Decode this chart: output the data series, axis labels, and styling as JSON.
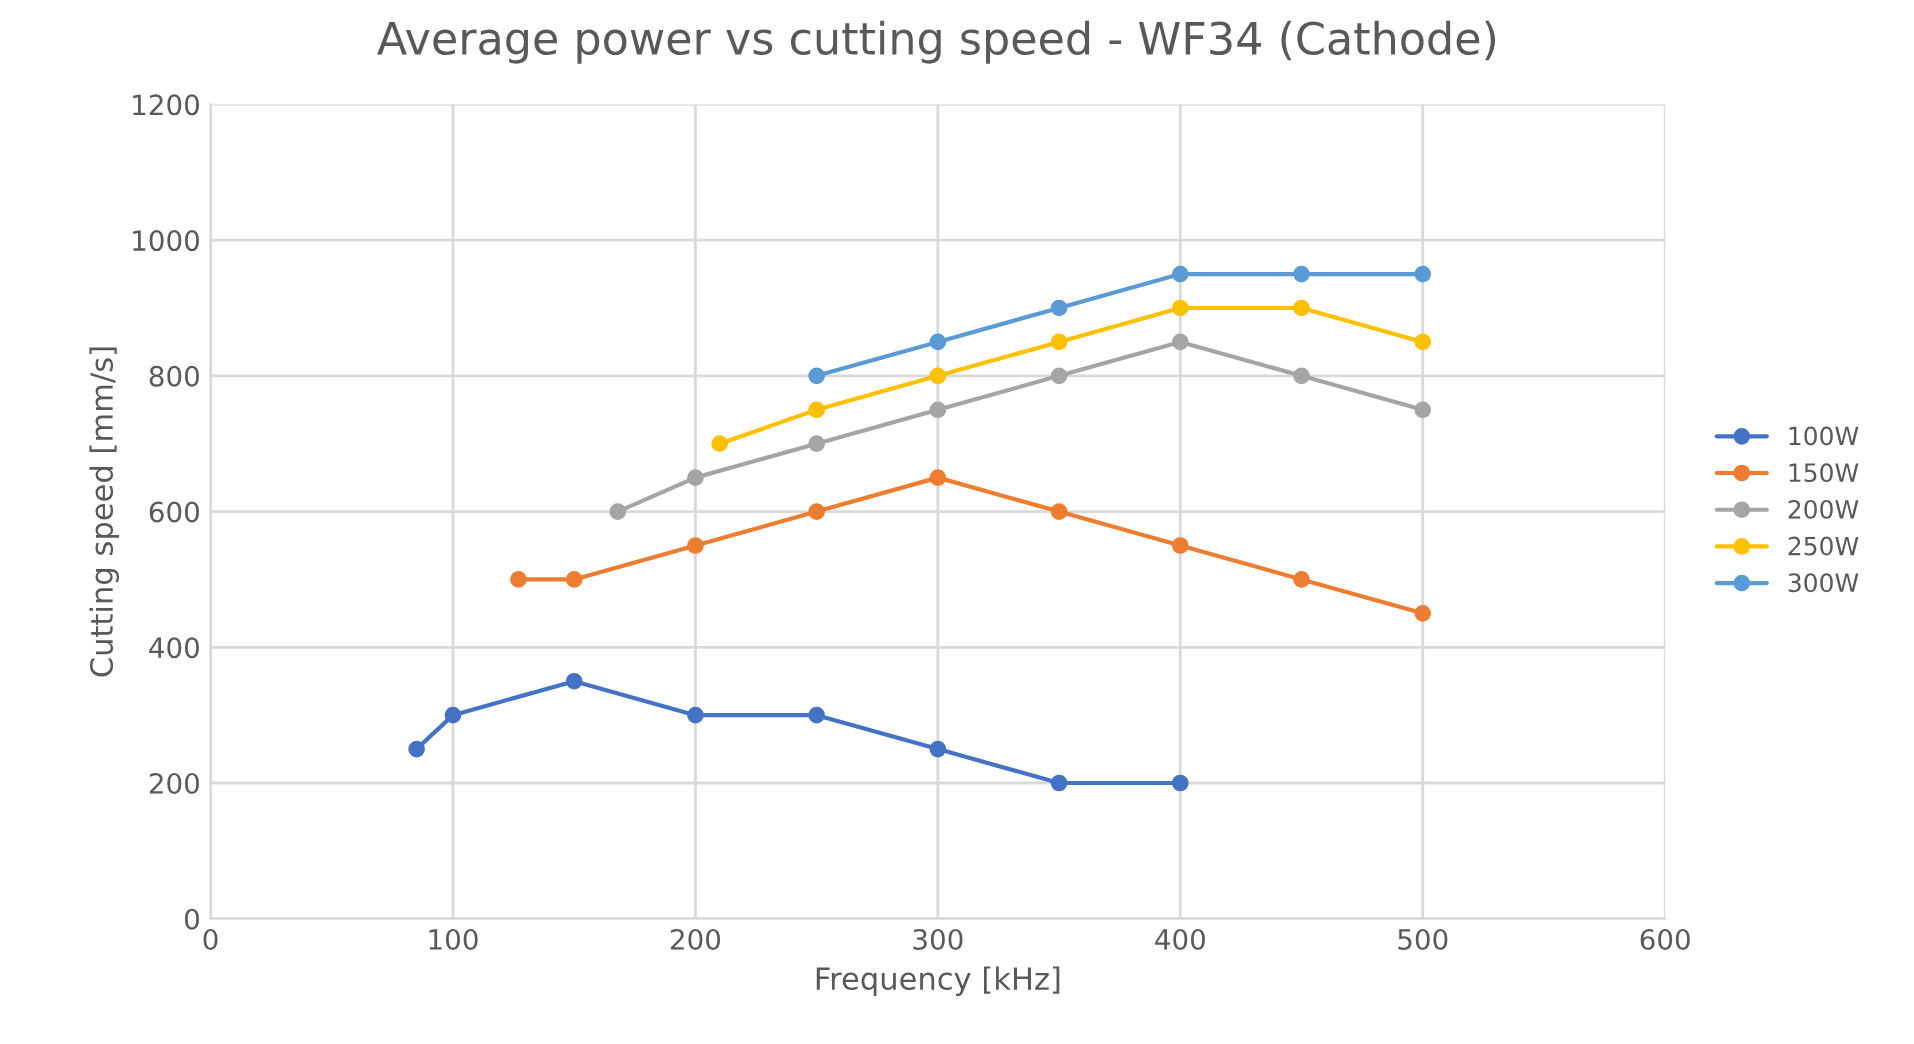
{
  "chart_data": {
    "type": "line",
    "title": "Average power vs cutting speed - WF34 (Cathode)",
    "xlabel": "Frequency [kHz]",
    "ylabel": "Cutting speed [mm/s]",
    "series": [
      {
        "name": "100W",
        "color": "#4472c4",
        "x": [
          85,
          100,
          150,
          200,
          250,
          300,
          350,
          400
        ],
        "values": [
          250,
          300,
          350,
          300,
          300,
          250,
          200,
          200
        ]
      },
      {
        "name": "150W",
        "color": "#ed7d31",
        "x": [
          127,
          150,
          200,
          250,
          300,
          350,
          400,
          450,
          500
        ],
        "values": [
          500,
          500,
          550,
          600,
          650,
          600,
          550,
          500,
          450
        ]
      },
      {
        "name": "200W",
        "color": "#a5a5a5",
        "x": [
          168,
          200,
          250,
          300,
          350,
          400,
          450,
          500
        ],
        "values": [
          600,
          650,
          700,
          750,
          800,
          850,
          800,
          750
        ]
      },
      {
        "name": "250W",
        "color": "#ffc000",
        "x": [
          210,
          250,
          300,
          350,
          400,
          450,
          500
        ],
        "values": [
          700,
          750,
          800,
          850,
          900,
          900,
          850
        ]
      },
      {
        "name": "300W",
        "color": "#5b9bd5",
        "x": [
          250,
          300,
          350,
          400,
          450,
          500
        ],
        "values": [
          800,
          850,
          900,
          950,
          950,
          950
        ]
      }
    ],
    "xlim": [
      0,
      600
    ],
    "xticks": [
      0,
      100,
      200,
      300,
      400,
      500,
      600
    ],
    "ylim": [
      0,
      1200
    ],
    "yticks": [
      0,
      200,
      400,
      600,
      800,
      1000,
      1200
    ],
    "grid": true,
    "legend": "right",
    "marker": "circle",
    "line_style": "solid"
  }
}
